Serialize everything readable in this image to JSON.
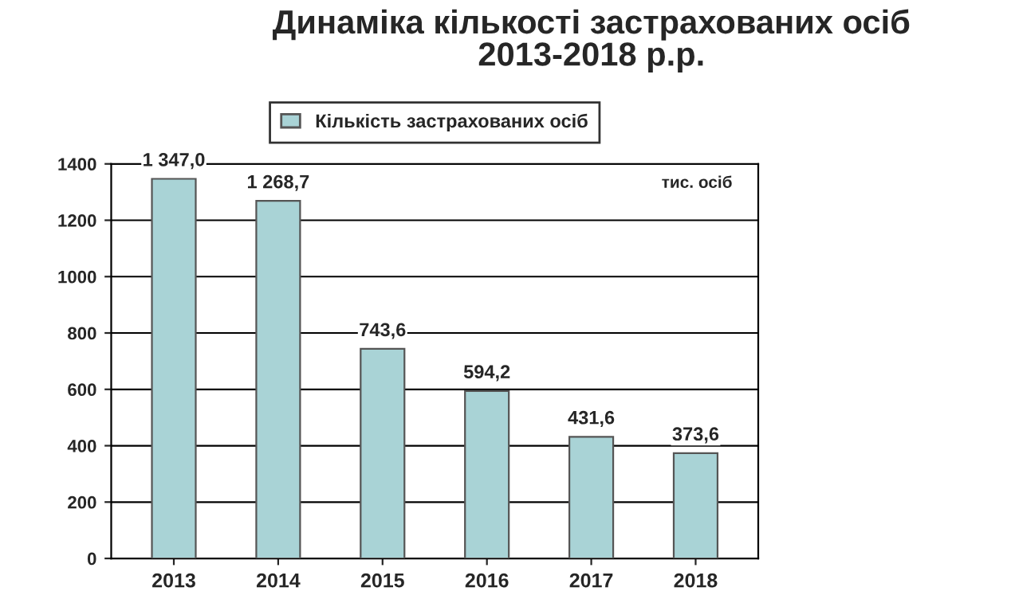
{
  "chart_data": {
    "type": "bar",
    "title": "Динаміка кількості застрахованих осіб\n2013-2018 р.р.",
    "categories": [
      "2013",
      "2014",
      "2015",
      "2016",
      "2017",
      "2018"
    ],
    "series": [
      {
        "name": "Кількість застрахованих осіб",
        "color": "#a9d3d6",
        "values": [
          1347.0,
          1268.7,
          743.6,
          594.2,
          431.6,
          373.6
        ],
        "value_labels": [
          "1 347,0",
          "1 268,7",
          "743,6",
          "594,2",
          "431,6",
          "373,6"
        ]
      }
    ],
    "annotations": [
      "тис. осіб"
    ],
    "ylim": [
      0,
      1400
    ],
    "yticks": [
      0,
      200,
      400,
      600,
      800,
      1000,
      1200,
      1400
    ],
    "grid": "y",
    "legend": "top"
  }
}
